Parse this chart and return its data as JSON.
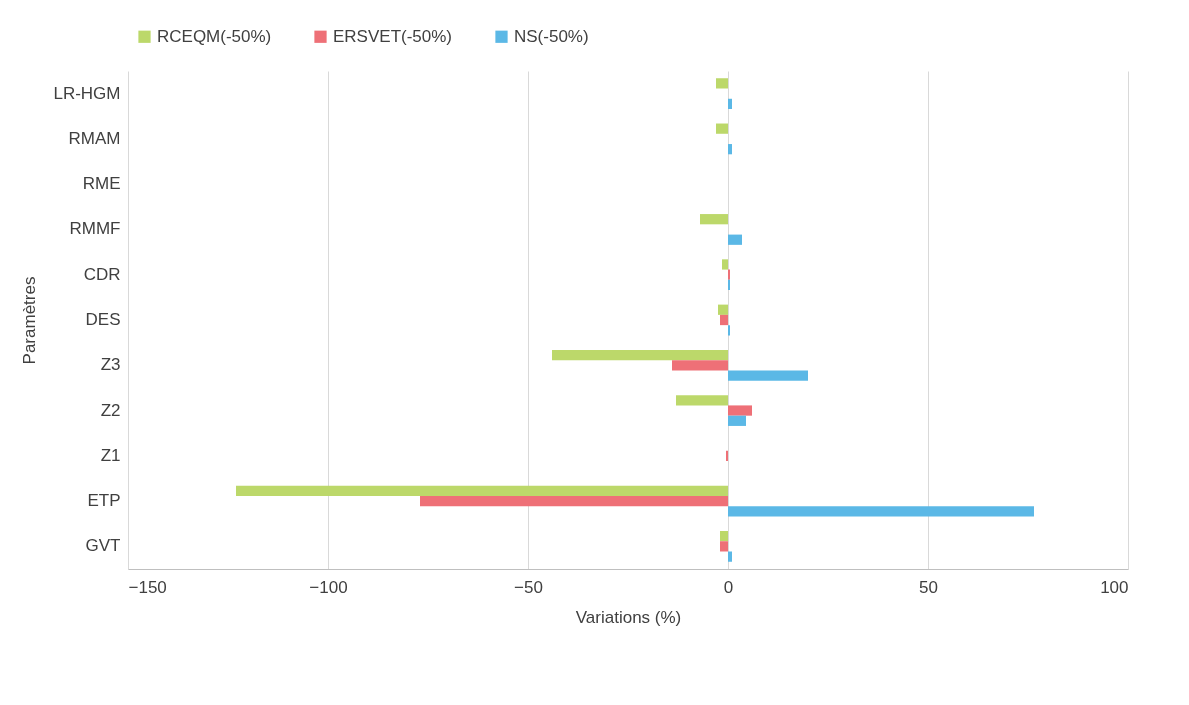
{
  "chart_data": {
    "type": "bar",
    "orientation": "horizontal",
    "xlabel": "Variations (%)",
    "ylabel": "Paramètres",
    "categories": [
      "LR-HGM",
      "RMAM",
      "RME",
      "RMMF",
      "CDR",
      "DES",
      "Z3",
      "Z2",
      "Z1",
      "ETP",
      "GVT"
    ],
    "series": [
      {
        "name": "RCEQM(-50%)",
        "color": "#bcd86a",
        "values": [
          -3,
          -3,
          0,
          -7,
          -1.5,
          -2.5,
          -44,
          -13,
          0,
          -123,
          -2
        ]
      },
      {
        "name": "ERSVET(-50%)",
        "color": "#ee7077",
        "values": [
          0,
          0,
          0,
          0,
          0.5,
          -2,
          -14,
          6,
          -0.5,
          -77,
          -2
        ]
      },
      {
        "name": "NS(-50%)",
        "color": "#5bb8e6",
        "values": [
          1,
          1,
          0,
          3.5,
          0.5,
          0.5,
          20,
          4.5,
          0,
          76.5,
          1
        ]
      }
    ],
    "xlim": [
      -150,
      100
    ],
    "xticks": [
      -150,
      -100,
      -50,
      0,
      50,
      100
    ],
    "grid": "x",
    "legend": "top"
  }
}
